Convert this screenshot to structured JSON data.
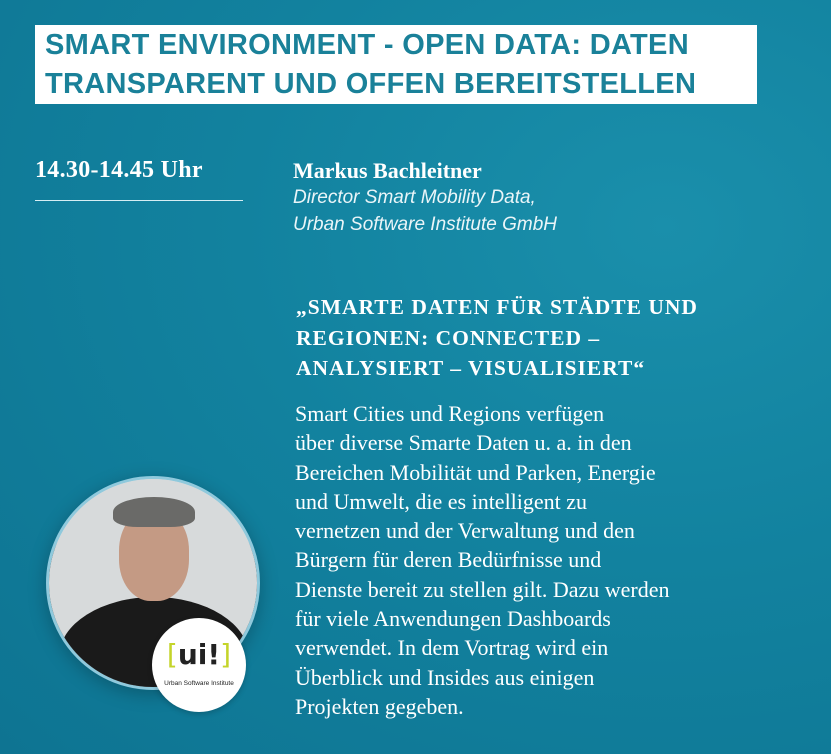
{
  "title": {
    "line1": "SMART ENVIRONMENT - OPEN DATA: DATEN",
    "line2": "TRANSPARENT UND OFFEN BEREITSTELLEN"
  },
  "session": {
    "time": "14.30-14.45 Uhr"
  },
  "speaker": {
    "name": "Markus Bachleitner",
    "role_line1": "Director Smart Mobility Data,",
    "role_line2": "Urban Software Institute GmbH"
  },
  "talk": {
    "heading_lines": [
      "„SMARTE DATEN FÜR STÄDTE UND",
      "REGIONEN: CONNECTED –",
      "ANALYSIERT – VISUALISIERT“"
    ],
    "body_lines": [
      "Smart Cities und Regions verfügen",
      "über diverse Smarte Daten u. a. in den",
      "Bereichen Mobilität und Parken, Energie",
      "und Umwelt, die es intelligent zu",
      "vernetzen und der Verwaltung und den",
      "Bürgern für deren Bedürfnisse und",
      "Dienste bereit zu stellen gilt. Dazu werden",
      "für viele Anwendungen Dashboards",
      "verwendet. In dem Vortrag wird ein",
      "Überblick und Insides aus einigen",
      "Projekten gegeben."
    ]
  },
  "logo": {
    "mark_open": "[",
    "mark_text": "ui!",
    "mark_close": "]",
    "subtitle": "Urban Software Institute"
  },
  "colors": {
    "background": "#12829f",
    "title_text": "#1a8199",
    "logo_accent": "#c4d42a"
  }
}
